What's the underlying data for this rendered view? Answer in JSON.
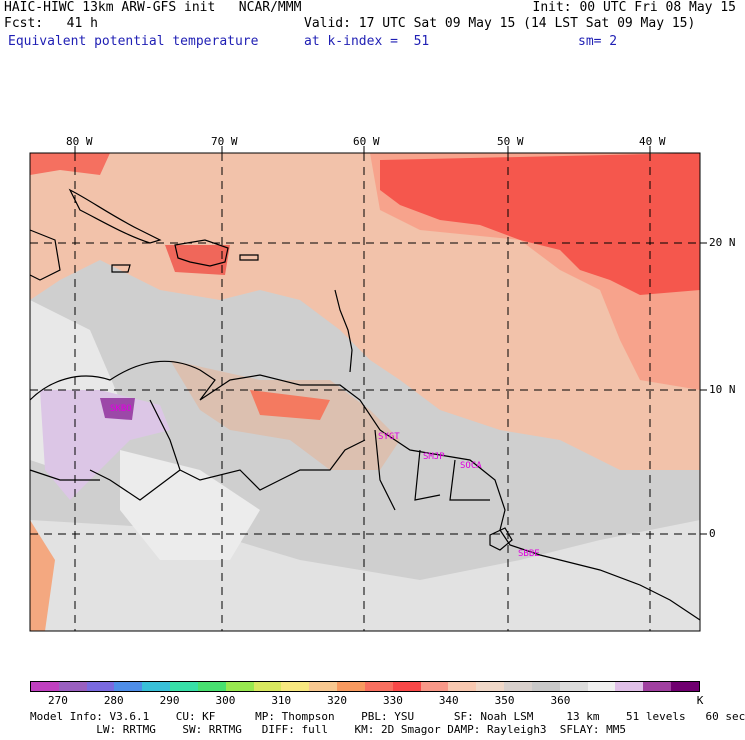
{
  "header": {
    "line1_left": "HAIC-HIWC 13km ARW-GFS init   NCAR/MMM",
    "line1_right": "Init: 00 UTC Fri 08 May 15",
    "line2_left": "Fcst:   41 h",
    "line2_right": "Valid: 17 UTC Sat 09 May 15 (14 LST Sat 09 May 15)",
    "line3_left": "Equivalent potential temperature",
    "line3_mid": "at k-index =  51",
    "line3_right": "sm= 2"
  },
  "map": {
    "lon_labels": [
      "80 W",
      "70 W",
      "60 W",
      "50 W",
      "40 W"
    ],
    "lat_labels": [
      "20 N",
      "10 N",
      "0"
    ],
    "stations": [
      "SKBO",
      "SYGT",
      "SMJP",
      "SOCA",
      "SBBE"
    ]
  },
  "colorbar": {
    "colors": [
      "#c040c0",
      "#9a60c0",
      "#7a6ae0",
      "#4f8ee8",
      "#39c0d8",
      "#38e0a8",
      "#48e070",
      "#98e850",
      "#d8e860",
      "#f8e880",
      "#f8c890",
      "#f89a60",
      "#f87060",
      "#f84848",
      "#f89888",
      "#f8c8b0",
      "#f0d8c8",
      "#d8d0cc",
      "#c8c8c8",
      "#dcdcdc",
      "#f0f0f0",
      "#e0c0e8",
      "#a040a0",
      "#700070"
    ],
    "labels": [
      "270",
      "280",
      "290",
      "300",
      "310",
      "320",
      "330",
      "340",
      "350",
      "360",
      "K"
    ]
  },
  "model_info": {
    "line1": "Model Info: V3.6.1    CU: KF      MP: Thompson    PBL: YSU      SF: Noah LSM     13 km    51 levels   60 sec",
    "line2": "          LW: RRTMG    SW: RRTMG   DIFF: full    KM: 2D Smagor DAMP: Rayleigh3  SFLAY: MM5"
  }
}
